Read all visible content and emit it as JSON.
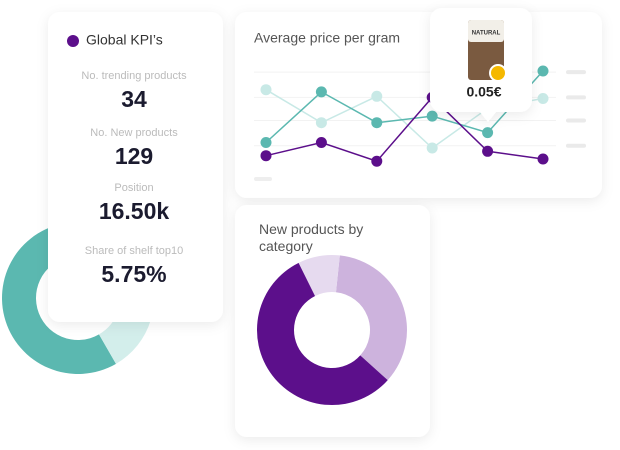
{
  "kpi_card": {
    "title": "Global KPI’s",
    "items": [
      {
        "label": "No. trending products",
        "value": "34"
      },
      {
        "label": "No. New products",
        "value": "129"
      },
      {
        "label": "Position",
        "value": "16.50k"
      },
      {
        "label": "Share of shelf top10",
        "value": "5.75%"
      }
    ]
  },
  "tooltip": {
    "brand": "NATURAL",
    "price": "0.05€"
  },
  "chart_data": [
    {
      "type": "pie",
      "values": [
        88,
        12
      ],
      "colors": [
        "#5bb8b0",
        "#d3eeeb"
      ],
      "start_angle": 150
    },
    {
      "type": "line",
      "title": "Average price per gram",
      "categories": [
        null,
        null,
        null,
        null,
        null,
        null
      ],
      "series": [
        {
          "color": "#c8e9e6",
          "values": [
            73,
            43,
            67,
            20,
            56,
            65
          ]
        },
        {
          "color": "#5bb8b0",
          "values": [
            25,
            71,
            43,
            49,
            34,
            90
          ]
        },
        {
          "color": "#5c0f8b",
          "values": [
            13,
            25,
            8,
            66,
            17,
            10
          ]
        }
      ],
      "ylim": [
        0,
        100
      ],
      "yticks": [
        22,
        45,
        66,
        89
      ],
      "grid": true
    },
    {
      "type": "pie",
      "title": "New products by category",
      "values": [
        35,
        56,
        9
      ],
      "colors": [
        "#cdb3dd",
        "#5c0f8b",
        "#e6daef"
      ],
      "start_angle": 6
    }
  ]
}
